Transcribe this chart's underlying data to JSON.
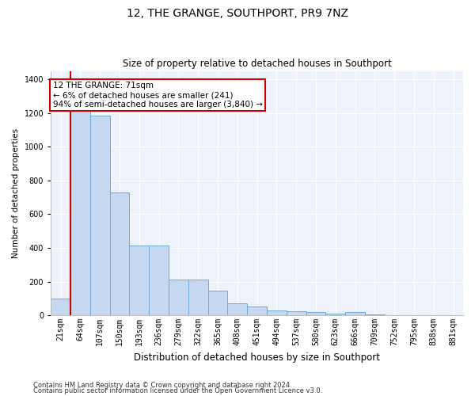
{
  "title": "12, THE GRANGE, SOUTHPORT, PR9 7NZ",
  "subtitle": "Size of property relative to detached houses in Southport",
  "xlabel": "Distribution of detached houses by size in Southport",
  "ylabel": "Number of detached properties",
  "footnote1": "Contains HM Land Registry data © Crown copyright and database right 2024.",
  "footnote2": "Contains public sector information licensed under the Open Government Licence v3.0.",
  "annotation_title": "12 THE GRANGE: 71sqm",
  "annotation_line2": "← 6% of detached houses are smaller (241)",
  "annotation_line3": "94% of semi-detached houses are larger (3,840) →",
  "property_line_color": "#cc0000",
  "annotation_box_color": "#cc0000",
  "bar_color": "#c5d8f0",
  "bar_edge_color": "#6eaad4",
  "background_color": "#eef2fa",
  "grid_color": "#ffffff",
  "categories": [
    "21sqm",
    "64sqm",
    "107sqm",
    "150sqm",
    "193sqm",
    "236sqm",
    "279sqm",
    "322sqm",
    "365sqm",
    "408sqm",
    "451sqm",
    "494sqm",
    "537sqm",
    "580sqm",
    "623sqm",
    "666sqm",
    "709sqm",
    "752sqm",
    "795sqm",
    "838sqm",
    "881sqm"
  ],
  "values": [
    100,
    1220,
    1185,
    730,
    415,
    415,
    210,
    210,
    148,
    72,
    50,
    28,
    22,
    18,
    12,
    20,
    5,
    0,
    0,
    0,
    0
  ],
  "ylim": [
    0,
    1450
  ],
  "yticks": [
    0,
    200,
    400,
    600,
    800,
    1000,
    1200,
    1400
  ],
  "property_bar_index": 1,
  "title_fontsize": 10,
  "subtitle_fontsize": 8.5,
  "ylabel_fontsize": 7.5,
  "xlabel_fontsize": 8.5,
  "tick_fontsize": 7,
  "annotation_fontsize": 7.5,
  "footnote_fontsize": 6
}
